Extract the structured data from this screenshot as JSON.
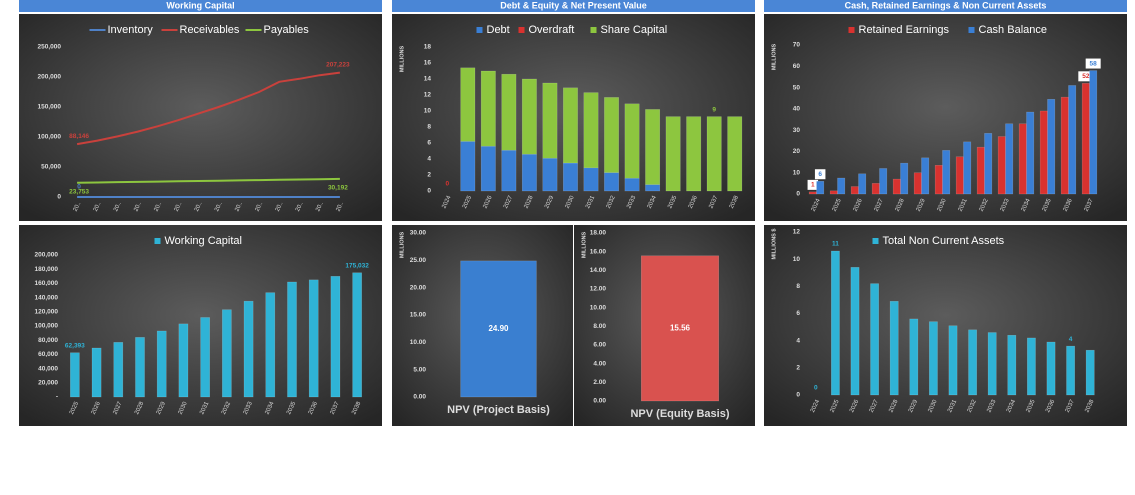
{
  "headers": [
    "Working Capital",
    "Debt & Equity & Net Present Value",
    "Cash, Retained Earnings & Non Current Assets"
  ],
  "chart_data": [
    {
      "type": "line",
      "categories": [
        "20..",
        "20..",
        "20..",
        "20..",
        "20..",
        "20..",
        "20..",
        "20..",
        "20..",
        "20..",
        "20..",
        "20..",
        "20..",
        "20.."
      ],
      "series": [
        {
          "name": "Inventory",
          "color": "#4f81c7",
          "values": [
            0,
            0,
            0,
            0,
            0,
            0,
            0,
            0,
            0,
            0,
            0,
            0,
            0,
            0
          ],
          "value_labels": [
            "0",
            null,
            null,
            null,
            null,
            null,
            null,
            null,
            null,
            null,
            null,
            null,
            null,
            null
          ]
        },
        {
          "name": "Receivables",
          "color": "#c9413c",
          "values": [
            88146,
            94000,
            101000,
            109000,
            118000,
            128000,
            139000,
            150000,
            162000,
            175000,
            192000,
            197000,
            203000,
            207223
          ],
          "value_labels": [
            "88,146",
            null,
            null,
            null,
            null,
            null,
            null,
            null,
            null,
            null,
            null,
            null,
            null,
            "207,223"
          ]
        },
        {
          "name": "Payables",
          "color": "#8dc63f",
          "values": [
            23753,
            24240,
            24730,
            25220,
            25710,
            26200,
            26690,
            27180,
            27670,
            28160,
            28650,
            29140,
            29630,
            30192
          ],
          "value_labels": [
            "23,753",
            null,
            null,
            null,
            null,
            null,
            null,
            null,
            null,
            null,
            null,
            null,
            null,
            "30,192"
          ]
        }
      ],
      "ylim": [
        0,
        250000
      ],
      "yticks": [
        0,
        {
          "value": 50000,
          "label": "50,000"
        },
        {
          "value": 100000,
          "label": "100,000"
        },
        {
          "value": 150000,
          "label": "150,000"
        },
        {
          "value": 200000,
          "label": "200,000"
        },
        {
          "value": 250000,
          "label": "250,000"
        }
      ]
    },
    {
      "type": "bar",
      "stacked": true,
      "ylabel": "MILLIONS",
      "categories": [
        "2024",
        "2025",
        "2026",
        "2027",
        "2028",
        "2029",
        "2030",
        "2031",
        "2032",
        "2033",
        "2034",
        "2035",
        "2036",
        "2037",
        "2038"
      ],
      "series": [
        {
          "name": "Debt",
          "color": "#3a7fd5",
          "values": [
            0,
            6.2,
            5.6,
            5.1,
            4.6,
            4.1,
            3.5,
            2.9,
            2.3,
            1.6,
            0.8,
            0,
            0,
            0,
            0
          ],
          "value_labels": [
            null,
            null,
            null,
            null,
            null,
            null,
            null,
            null,
            null,
            null,
            null,
            null,
            null,
            null,
            "0"
          ]
        },
        {
          "name": "Overdraft",
          "color": "#d9322f",
          "values": [
            0,
            0,
            0,
            0,
            0,
            0,
            0,
            0,
            0,
            0,
            0,
            0,
            0,
            0,
            0
          ],
          "value_labels": [
            "0",
            null,
            null,
            null,
            null,
            null,
            null,
            null,
            null,
            null,
            null,
            null,
            null,
            null,
            null
          ]
        },
        {
          "name": "Share Capital",
          "color": "#8dc63f",
          "values": [
            0,
            9.2,
            9.4,
            9.5,
            9.4,
            9.4,
            9.4,
            9.4,
            9.4,
            9.3,
            9.4,
            9.3,
            9.3,
            9.3,
            9.3
          ],
          "value_labels": [
            null,
            null,
            null,
            null,
            null,
            null,
            null,
            null,
            null,
            null,
            null,
            null,
            null,
            "9",
            null
          ]
        }
      ],
      "ylim": [
        0,
        18
      ],
      "yticks": [
        0,
        2,
        4,
        6,
        8,
        10,
        12,
        14,
        16,
        18
      ]
    },
    {
      "type": "bar",
      "label_box": true,
      "ylabel": "MILLIONS",
      "categories": [
        "2024",
        "2025",
        "2026",
        "2027",
        "2028",
        "2029",
        "2030",
        "2031",
        "2032",
        "2033",
        "2034",
        "2035",
        "2036",
        "2037"
      ],
      "series": [
        {
          "name": "Retained Earnings",
          "color": "#d9322f",
          "values": [
            1,
            1.5,
            3.5,
            5,
            7,
            10,
            13.5,
            17.5,
            22,
            27,
            33,
            39,
            45.5,
            52
          ],
          "value_labels": [
            "1",
            null,
            null,
            null,
            null,
            null,
            null,
            null,
            null,
            null,
            null,
            null,
            null,
            "52"
          ]
        },
        {
          "name": "Cash Balance",
          "color": "#3a7fd5",
          "values": [
            6,
            7.5,
            9.5,
            12,
            14.5,
            17,
            20.5,
            24.5,
            28.5,
            33,
            38.5,
            44.5,
            51,
            58
          ],
          "value_labels": [
            "6",
            null,
            null,
            null,
            null,
            null,
            null,
            null,
            null,
            null,
            null,
            null,
            null,
            "58"
          ]
        }
      ],
      "ylim": [
        0,
        70
      ],
      "yticks": [
        0,
        10,
        20,
        30,
        40,
        50,
        60,
        70
      ]
    },
    {
      "type": "bar",
      "categories": [
        "2025",
        "2026",
        "2027",
        "2028",
        "2029",
        "2030",
        "2031",
        "2032",
        "2033",
        "2034",
        "2035",
        "2036",
        "2037",
        "2038"
      ],
      "series": [
        {
          "name": "Working Capital",
          "color": "#2fb3d6",
          "values": [
            62393,
            69000,
            77000,
            84000,
            93000,
            103000,
            112000,
            123000,
            135000,
            147000,
            162000,
            165000,
            170000,
            175032
          ],
          "value_labels": [
            "62,393",
            null,
            null,
            null,
            null,
            null,
            null,
            null,
            null,
            null,
            null,
            null,
            null,
            "175,032"
          ]
        }
      ],
      "ylim": [
        0,
        200000
      ],
      "yticks": [
        {
          "value": 0,
          "label": "-"
        },
        {
          "value": 20000,
          "label": "20,000"
        },
        {
          "value": 40000,
          "label": "40,000"
        },
        {
          "value": 60000,
          "label": "60,000"
        },
        {
          "value": 80000,
          "label": "80,000"
        },
        {
          "value": 100000,
          "label": "100,000"
        },
        {
          "value": 120000,
          "label": "120,000"
        },
        {
          "value": 140000,
          "label": "140,000"
        },
        {
          "value": 160000,
          "label": "160,000"
        },
        {
          "value": 180000,
          "label": "180,000"
        },
        {
          "value": 200000,
          "label": "200,000"
        }
      ]
    },
    {
      "type": "bar",
      "ylabel": "MILLIONS",
      "categories": [
        "NPV (Project Basis)"
      ],
      "series": [
        {
          "color": "#3a7fd0",
          "values": [
            24.9
          ],
          "value_labels": [
            "24.90"
          ]
        }
      ],
      "ylim": [
        0,
        30
      ],
      "yticks": [
        {
          "value": 0,
          "label": "0.00"
        },
        {
          "value": 5,
          "label": "5.00"
        },
        {
          "value": 10,
          "label": "10.00"
        },
        {
          "value": 15,
          "label": "15.00"
        },
        {
          "value": 20,
          "label": "20.00"
        },
        {
          "value": 25,
          "label": "25.00"
        },
        {
          "value": 30,
          "label": "30.00"
        }
      ]
    },
    {
      "type": "bar",
      "ylabel": "MILLIONS",
      "categories": [
        "NPV (Equity Basis)"
      ],
      "series": [
        {
          "color": "#d9524f",
          "values": [
            15.56
          ]
        }
      ],
      "ylim": [
        0,
        18
      ],
      "yticks": [
        {
          "value": 0,
          "label": "0.00"
        },
        {
          "value": 2,
          "label": "2.00"
        },
        {
          "value": 4,
          "label": "4.00"
        },
        {
          "value": 6,
          "label": "6.00"
        },
        {
          "value": 8,
          "label": "8.00"
        },
        {
          "value": 10,
          "label": "10.00"
        },
        {
          "value": 12,
          "label": "12.00"
        },
        {
          "value": 14,
          "label": "14.00"
        },
        {
          "value": 16,
          "label": "16.00"
        },
        {
          "value": 18,
          "label": "18.00"
        }
      ]
    },
    {
      "type": "bar",
      "ylabel": "MILLIONS $",
      "categories": [
        "2024",
        "2025",
        "2026",
        "2027",
        "2028",
        "2029",
        "2030",
        "2031",
        "2032",
        "2033",
        "2034",
        "2035",
        "2036",
        "2037",
        "2038"
      ],
      "series": [
        {
          "name": "Total Non Current Assets",
          "color": "#2fb3d6",
          "values": [
            0,
            10.6,
            9.4,
            8.2,
            6.9,
            5.6,
            5.4,
            5.1,
            4.8,
            4.6,
            4.4,
            4.2,
            3.9,
            3.6,
            3.3
          ],
          "value_labels": [
            "0",
            "11",
            null,
            null,
            null,
            null,
            null,
            null,
            null,
            null,
            null,
            null,
            null,
            "4",
            null
          ]
        }
      ],
      "ylim": [
        0,
        12
      ],
      "yticks": [
        0,
        2,
        4,
        6,
        8,
        10,
        12
      ]
    }
  ]
}
